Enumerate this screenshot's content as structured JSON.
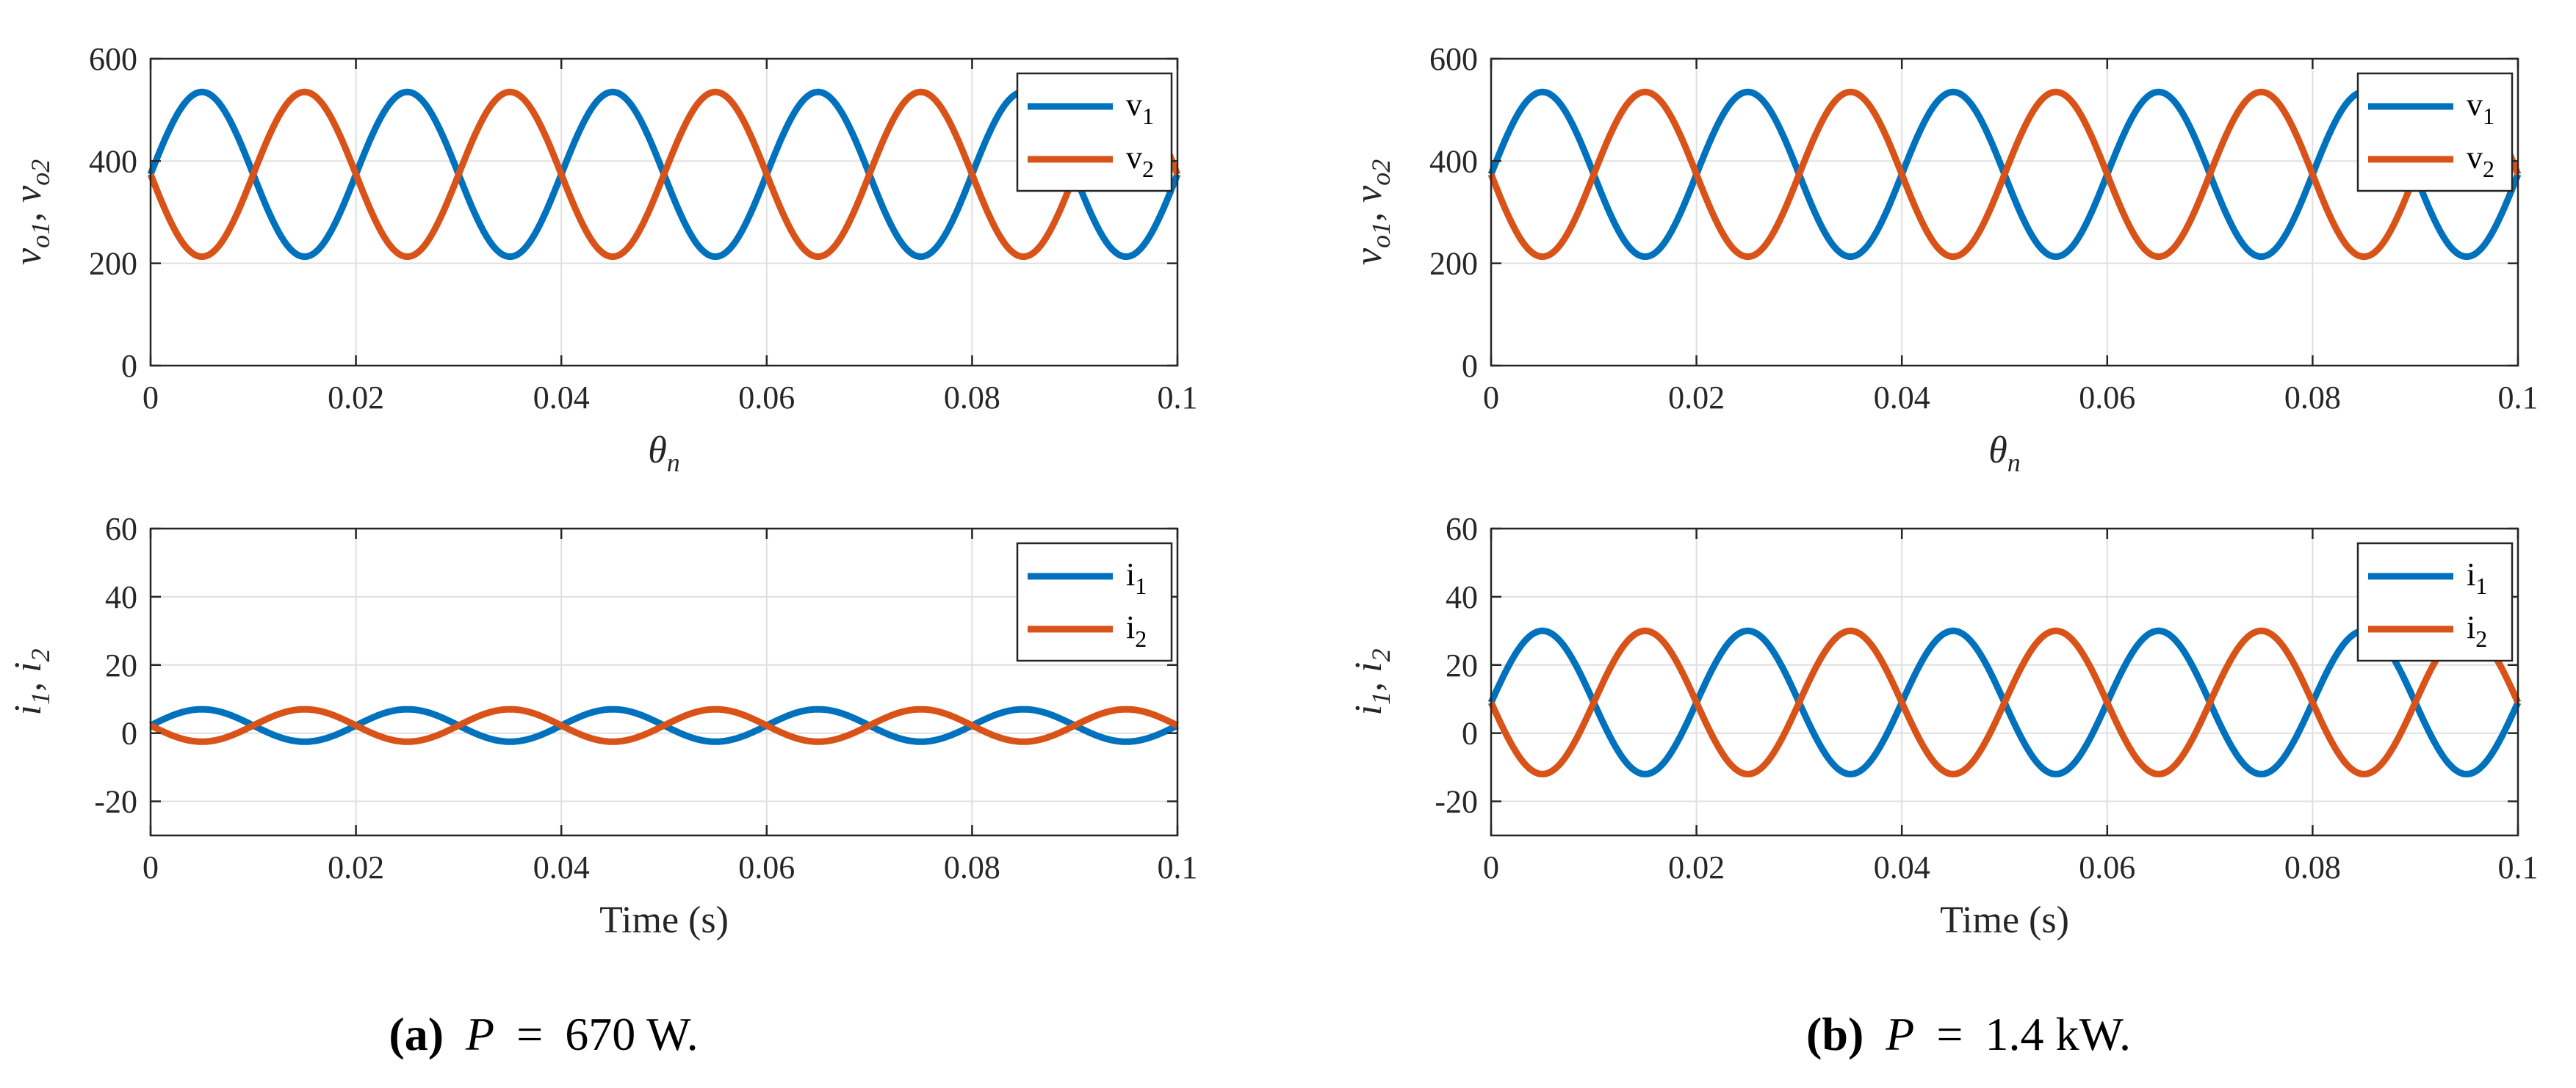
{
  "colors": {
    "series1": "#0072BD",
    "series2": "#D95319",
    "grid": "#dfdfdf",
    "axis": "#262626"
  },
  "panels": [
    {
      "caption": {
        "label": "(a)",
        "var": "P",
        "eq": "=",
        "value": "670 W."
      },
      "plots": [
        {
          "type": "line",
          "ylabel": "v_o1, v_o2",
          "ylabel_parts": [
            "v",
            "o1",
            ", ",
            "v",
            "o2"
          ],
          "xlabel_parts": [
            "θ",
            "n"
          ],
          "xlabel_style": "italic",
          "ylim": [
            0,
            600
          ],
          "yticks": [
            0,
            200,
            400,
            600
          ],
          "ytick_labels": [
            "0",
            "200",
            "400",
            "600"
          ],
          "xlim": [
            0,
            0.1
          ],
          "xticks": [
            0,
            0.02,
            0.04,
            0.06,
            0.08,
            0.1
          ],
          "xtick_labels": [
            "0",
            "0.02",
            "0.04",
            "0.06",
            "0.08",
            "0.1"
          ],
          "grid": true,
          "legend_position": "top-right",
          "series": [
            {
              "name": "v1",
              "base": "v",
              "sub": "1",
              "period": 0.02,
              "max": 535,
              "min": 213,
              "peak_at": 0.005
            },
            {
              "name": "v2",
              "base": "v",
              "sub": "2",
              "period": 0.02,
              "max": 535,
              "min": 213,
              "peak_at": 0.015
            }
          ]
        },
        {
          "type": "line",
          "ylabel": "i_1, i_2",
          "ylabel_parts": [
            "i",
            "1",
            ", ",
            "i",
            "2"
          ],
          "xlabel_parts": [
            "Time (s)",
            ""
          ],
          "xlabel_style": "normal",
          "ylim": [
            -30,
            60
          ],
          "yticks": [
            -20,
            0,
            20,
            40,
            60
          ],
          "ytick_labels": [
            "-20",
            "0",
            "20",
            "40",
            "60"
          ],
          "xlim": [
            0,
            0.1
          ],
          "xticks": [
            0,
            0.02,
            0.04,
            0.06,
            0.08,
            0.1
          ],
          "xtick_labels": [
            "0",
            "0.02",
            "0.04",
            "0.06",
            "0.08",
            "0.1"
          ],
          "grid": true,
          "legend_position": "top-right",
          "series": [
            {
              "name": "i1",
              "base": "i",
              "sub": "1",
              "period": 0.02,
              "max": 7,
              "min": -2.5,
              "peak_at": 0.005
            },
            {
              "name": "i2",
              "base": "i",
              "sub": "2",
              "period": 0.02,
              "max": 7,
              "min": -2.5,
              "peak_at": 0.015
            }
          ]
        }
      ]
    },
    {
      "caption": {
        "label": "(b)",
        "var": "P",
        "eq": "=",
        "value": "1.4 kW."
      },
      "plots": [
        {
          "type": "line",
          "ylabel": "v_o1, v_o2",
          "ylabel_parts": [
            "v",
            "o1",
            ", ",
            "v",
            "o2"
          ],
          "xlabel_parts": [
            "θ",
            "n"
          ],
          "xlabel_style": "italic",
          "ylim": [
            0,
            600
          ],
          "yticks": [
            0,
            200,
            400,
            600
          ],
          "ytick_labels": [
            "0",
            "200",
            "400",
            "600"
          ],
          "xlim": [
            0,
            0.1
          ],
          "xticks": [
            0,
            0.02,
            0.04,
            0.06,
            0.08,
            0.1
          ],
          "xtick_labels": [
            "0",
            "0.02",
            "0.04",
            "0.06",
            "0.08",
            "0.1"
          ],
          "grid": true,
          "legend_position": "top-right",
          "series": [
            {
              "name": "v1",
              "base": "v",
              "sub": "1",
              "period": 0.02,
              "max": 535,
              "min": 213,
              "peak_at": 0.005
            },
            {
              "name": "v2",
              "base": "v",
              "sub": "2",
              "period": 0.02,
              "max": 535,
              "min": 213,
              "peak_at": 0.015
            }
          ]
        },
        {
          "type": "line",
          "ylabel": "i_1, i_2",
          "ylabel_parts": [
            "i",
            "1",
            ", ",
            "i",
            "2"
          ],
          "xlabel_parts": [
            "Time (s)",
            ""
          ],
          "xlabel_style": "normal",
          "ylim": [
            -30,
            60
          ],
          "yticks": [
            -20,
            0,
            20,
            40,
            60
          ],
          "ytick_labels": [
            "-20",
            "0",
            "20",
            "40",
            "60"
          ],
          "xlim": [
            0,
            0.1
          ],
          "xticks": [
            0,
            0.02,
            0.04,
            0.06,
            0.08,
            0.1
          ],
          "xtick_labels": [
            "0",
            "0.02",
            "0.04",
            "0.06",
            "0.08",
            "0.1"
          ],
          "grid": true,
          "legend_position": "top-right",
          "series": [
            {
              "name": "i1",
              "base": "i",
              "sub": "1",
              "period": 0.02,
              "max": 30,
              "min": -12,
              "peak_at": 0.005
            },
            {
              "name": "i2",
              "base": "i",
              "sub": "2",
              "period": 0.02,
              "max": 30,
              "min": -12,
              "peak_at": 0.015
            }
          ]
        }
      ]
    }
  ],
  "chart_data": [
    {
      "type": "line",
      "title": "(a) P = 670 W. top",
      "xlabel": "θn",
      "ylabel": "vo1, vo2",
      "ylim": [
        0,
        600
      ],
      "xlim": [
        0,
        0.1
      ],
      "series": [
        {
          "name": "v1",
          "max": 535,
          "min": 213,
          "period": 0.02,
          "peak_at": 0.005
        },
        {
          "name": "v2",
          "max": 535,
          "min": 213,
          "period": 0.02,
          "peak_at": 0.015
        }
      ]
    },
    {
      "type": "line",
      "title": "(a) P = 670 W. bottom",
      "xlabel": "Time (s)",
      "ylabel": "i1, i2",
      "ylim": [
        -30,
        60
      ],
      "xlim": [
        0,
        0.1
      ],
      "series": [
        {
          "name": "i1",
          "max": 7,
          "min": -2.5,
          "period": 0.02,
          "peak_at": 0.005
        },
        {
          "name": "i2",
          "max": 7,
          "min": -2.5,
          "period": 0.02,
          "peak_at": 0.015
        }
      ]
    },
    {
      "type": "line",
      "title": "(b) P = 1.4 kW. top",
      "xlabel": "θn",
      "ylabel": "vo1, vo2",
      "ylim": [
        0,
        600
      ],
      "xlim": [
        0,
        0.1
      ],
      "series": [
        {
          "name": "v1",
          "max": 535,
          "min": 213,
          "period": 0.02,
          "peak_at": 0.005
        },
        {
          "name": "v2",
          "max": 535,
          "min": 213,
          "period": 0.02,
          "peak_at": 0.015
        }
      ]
    },
    {
      "type": "line",
      "title": "(b) P = 1.4 kW. bottom",
      "xlabel": "Time (s)",
      "ylabel": "i1, i2",
      "ylim": [
        -30,
        60
      ],
      "xlim": [
        0,
        0.1
      ],
      "series": [
        {
          "name": "i1",
          "max": 30,
          "min": -12,
          "period": 0.02,
          "peak_at": 0.005
        },
        {
          "name": "i2",
          "max": 30,
          "min": -12,
          "period": 0.02,
          "peak_at": 0.015
        }
      ]
    }
  ]
}
